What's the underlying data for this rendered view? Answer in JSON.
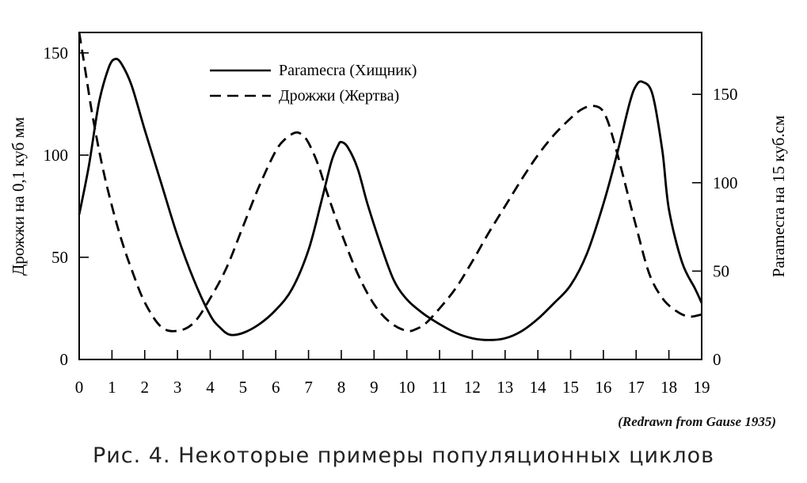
{
  "chart_data": {
    "type": "line",
    "xlabel": "",
    "ylabel": "Дрожжи на 0,1 куб мм",
    "ylabel_right": "Paramecra на 15 куб.см",
    "xlim": [
      0,
      19
    ],
    "ylim": [
      0,
      160
    ],
    "ylim_right": [
      0,
      185
    ],
    "x_ticks": [
      "0",
      "1",
      "2",
      "3",
      "4",
      "5",
      "6",
      "7",
      "8",
      "9",
      "10",
      "11",
      "12",
      "13",
      "14",
      "15",
      "16",
      "17",
      "18",
      "19"
    ],
    "y_ticks": [
      "0",
      "50",
      "100",
      "150"
    ],
    "y_ticks_right": [
      "0",
      "50",
      "100",
      "150"
    ],
    "legend_position": "top-center",
    "grid": false,
    "series": [
      {
        "name": "Paramecra (Хищник)",
        "style": "solid",
        "axis": "right",
        "x": [
          0,
          0.3,
          0.6,
          0.9,
          1.1,
          1.3,
          1.6,
          2.0,
          2.5,
          3.0,
          3.5,
          4.0,
          4.3,
          4.6,
          5.0,
          5.5,
          6.0,
          6.5,
          7.0,
          7.4,
          7.7,
          7.9,
          8.0,
          8.2,
          8.5,
          8.8,
          9.2,
          9.6,
          10.0,
          10.5,
          11.0,
          11.5,
          12.0,
          12.5,
          13.0,
          13.5,
          14.0,
          14.5,
          15.0,
          15.5,
          16.0,
          16.4,
          16.8,
          17.0,
          17.2,
          17.5,
          17.8,
          18.0,
          18.4,
          18.8,
          19.0
        ],
        "values": [
          82,
          110,
          145,
          165,
          170,
          167,
          155,
          130,
          100,
          70,
          45,
          25,
          18,
          14,
          15,
          20,
          28,
          40,
          62,
          90,
          112,
          121,
          123,
          120,
          108,
          88,
          65,
          45,
          34,
          26,
          20,
          15,
          12,
          11,
          12,
          16,
          23,
          32,
          42,
          60,
          88,
          115,
          145,
          155,
          157,
          150,
          118,
          85,
          55,
          40,
          32
        ]
      },
      {
        "name": "Дрожжи (Жертва)",
        "style": "dashed",
        "axis": "left",
        "x": [
          0,
          0.2,
          0.4,
          0.7,
          1.0,
          1.3,
          1.6,
          2.0,
          2.5,
          3.0,
          3.5,
          4.0,
          4.5,
          5.0,
          5.5,
          6.0,
          6.3,
          6.6,
          6.8,
          7.0,
          7.3,
          7.6,
          8.0,
          8.5,
          9.0,
          9.5,
          10.0,
          10.3,
          10.6,
          11.0,
          11.5,
          12.0,
          12.5,
          13.0,
          13.5,
          14.0,
          14.5,
          15.0,
          15.3,
          15.6,
          15.9,
          16.1,
          16.3,
          16.6,
          17.0,
          17.4,
          17.8,
          18.2,
          18.6,
          19.0
        ],
        "values": [
          160,
          140,
          120,
          95,
          75,
          58,
          44,
          28,
          16,
          14,
          18,
          30,
          45,
          65,
          85,
          102,
          108,
          111,
          110,
          106,
          95,
          80,
          62,
          42,
          27,
          18,
          14,
          15,
          18,
          25,
          35,
          48,
          62,
          75,
          88,
          100,
          110,
          118,
          122,
          124,
          123,
          118,
          108,
          90,
          65,
          42,
          30,
          24,
          21,
          22
        ]
      }
    ]
  },
  "credit": "(Redrawn from Gause 1935)",
  "caption": "Рис. 4. Некоторые примеры популяционных циклов"
}
